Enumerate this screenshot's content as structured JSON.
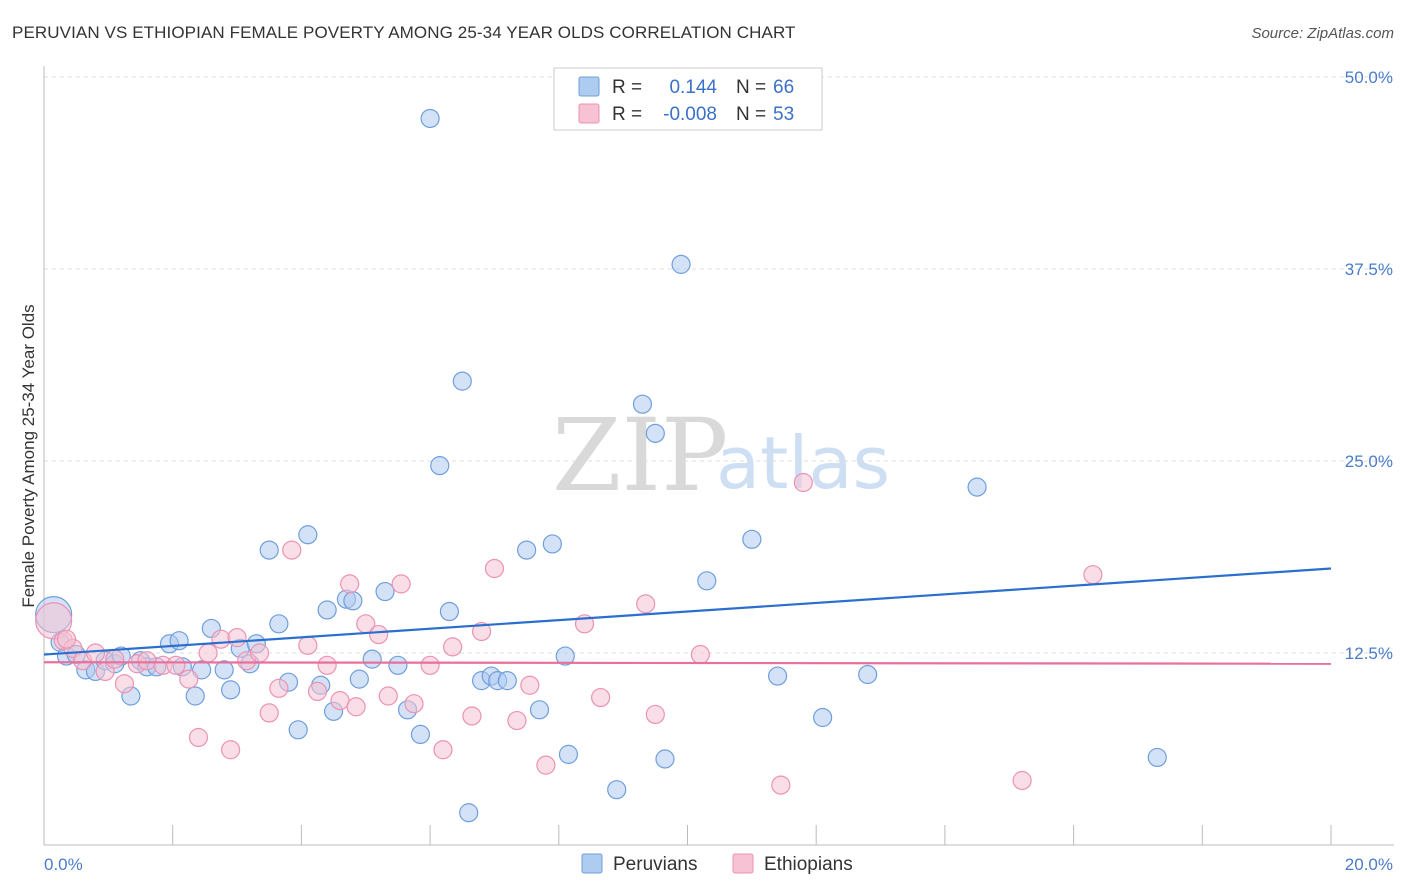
{
  "title": "PERUVIAN VS ETHIOPIAN FEMALE POVERTY AMONG 25-34 YEAR OLDS CORRELATION CHART",
  "source": "Source: ZipAtlas.com",
  "watermark": {
    "zip": "ZIP",
    "atlas": "atlas"
  },
  "legend": {
    "rows": [
      {
        "r_label": "R =",
        "r_value": "0.144",
        "n_label": "N =",
        "n_value": "66"
      },
      {
        "r_label": "R =",
        "r_value": "-0.008",
        "n_label": "N =",
        "n_value": "53"
      }
    ]
  },
  "bottom_legend": {
    "peruvians": "Peruvians",
    "ethiopians": "Ethiopians"
  },
  "colors": {
    "peruvians_fill": "#aecbf0",
    "peruvians_stroke": "#6f9fdc",
    "peruvians_line": "#2a6fcd",
    "ethiopians_fill": "#f6c2d4",
    "ethiopians_stroke": "#ec92b2",
    "ethiopians_line": "#e8709c",
    "grid": "#dddddd",
    "tick_text": "#4a7cc9"
  },
  "chart_data": {
    "type": "scatter",
    "title": "PERUVIAN VS ETHIOPIAN FEMALE POVERTY AMONG 25-34 YEAR OLDS CORRELATION CHART",
    "xlabel": "",
    "ylabel": "Female Poverty Among 25-34 Year Olds",
    "xlim": [
      0,
      20
    ],
    "ylim": [
      0,
      50
    ],
    "x_tick_labels": [
      "0.0%",
      "20.0%"
    ],
    "y_ticks": [
      12.5,
      25.0,
      37.5,
      50.0
    ],
    "y_tick_labels": [
      "12.5%",
      "25.0%",
      "37.5%",
      "50.0%"
    ],
    "grid": true,
    "legend_position": "top-center",
    "series": [
      {
        "name": "Peruvians",
        "r": 0.144,
        "n": 66,
        "trend": {
          "x": [
            0,
            20
          ],
          "y": [
            12.4,
            18.0
          ]
        },
        "points": [
          {
            "x": 0.15,
            "y": 15.0,
            "big": true
          },
          {
            "x": 0.25,
            "y": 13.2
          },
          {
            "x": 0.35,
            "y": 12.3
          },
          {
            "x": 0.5,
            "y": 12.4
          },
          {
            "x": 0.65,
            "y": 11.4
          },
          {
            "x": 0.8,
            "y": 11.3
          },
          {
            "x": 0.95,
            "y": 12.0
          },
          {
            "x": 1.1,
            "y": 11.8
          },
          {
            "x": 1.2,
            "y": 12.3
          },
          {
            "x": 1.35,
            "y": 9.7
          },
          {
            "x": 1.5,
            "y": 12.0
          },
          {
            "x": 1.6,
            "y": 11.6
          },
          {
            "x": 1.75,
            "y": 11.6
          },
          {
            "x": 1.95,
            "y": 13.1
          },
          {
            "x": 2.1,
            "y": 13.3
          },
          {
            "x": 2.15,
            "y": 11.6
          },
          {
            "x": 2.35,
            "y": 9.7
          },
          {
            "x": 2.45,
            "y": 11.4
          },
          {
            "x": 2.6,
            "y": 14.1
          },
          {
            "x": 2.8,
            "y": 11.4
          },
          {
            "x": 2.9,
            "y": 10.1
          },
          {
            "x": 3.05,
            "y": 12.8
          },
          {
            "x": 3.2,
            "y": 11.8
          },
          {
            "x": 3.3,
            "y": 13.1
          },
          {
            "x": 3.5,
            "y": 19.2
          },
          {
            "x": 3.65,
            "y": 14.4
          },
          {
            "x": 3.8,
            "y": 10.6
          },
          {
            "x": 3.95,
            "y": 7.5
          },
          {
            "x": 4.1,
            "y": 20.2
          },
          {
            "x": 4.3,
            "y": 10.4
          },
          {
            "x": 4.4,
            "y": 15.3
          },
          {
            "x": 4.5,
            "y": 8.7
          },
          {
            "x": 4.7,
            "y": 16.0
          },
          {
            "x": 4.8,
            "y": 15.9
          },
          {
            "x": 4.9,
            "y": 10.8
          },
          {
            "x": 5.1,
            "y": 12.1
          },
          {
            "x": 5.3,
            "y": 16.5
          },
          {
            "x": 5.5,
            "y": 11.7
          },
          {
            "x": 5.65,
            "y": 8.8
          },
          {
            "x": 5.85,
            "y": 7.2
          },
          {
            "x": 6.0,
            "y": 47.3
          },
          {
            "x": 6.15,
            "y": 24.7
          },
          {
            "x": 6.3,
            "y": 15.2
          },
          {
            "x": 6.5,
            "y": 30.2
          },
          {
            "x": 6.8,
            "y": 10.7
          },
          {
            "x": 6.95,
            "y": 11.0
          },
          {
            "x": 7.05,
            "y": 10.7
          },
          {
            "x": 7.2,
            "y": 10.7
          },
          {
            "x": 7.5,
            "y": 19.2
          },
          {
            "x": 7.7,
            "y": 8.8
          },
          {
            "x": 7.9,
            "y": 19.6
          },
          {
            "x": 8.1,
            "y": 12.3
          },
          {
            "x": 8.15,
            "y": 5.9
          },
          {
            "x": 8.9,
            "y": 3.6
          },
          {
            "x": 9.3,
            "y": 28.7
          },
          {
            "x": 9.5,
            "y": 26.8
          },
          {
            "x": 9.65,
            "y": 5.6
          },
          {
            "x": 9.9,
            "y": 37.8
          },
          {
            "x": 10.3,
            "y": 17.2
          },
          {
            "x": 11.0,
            "y": 19.9
          },
          {
            "x": 11.4,
            "y": 11.0
          },
          {
            "x": 12.1,
            "y": 8.3
          },
          {
            "x": 12.8,
            "y": 11.1
          },
          {
            "x": 14.5,
            "y": 23.3
          },
          {
            "x": 17.3,
            "y": 5.7
          },
          {
            "x": 6.6,
            "y": 2.1
          }
        ]
      },
      {
        "name": "Ethiopians",
        "r": -0.008,
        "n": 53,
        "trend": {
          "x": [
            0,
            20
          ],
          "y": [
            11.9,
            11.8
          ]
        },
        "points": [
          {
            "x": 0.15,
            "y": 14.6,
            "big": true
          },
          {
            "x": 0.3,
            "y": 13.3
          },
          {
            "x": 0.45,
            "y": 12.8
          },
          {
            "x": 0.6,
            "y": 12.0
          },
          {
            "x": 0.8,
            "y": 12.5
          },
          {
            "x": 0.95,
            "y": 11.3
          },
          {
            "x": 1.1,
            "y": 12.1
          },
          {
            "x": 1.25,
            "y": 10.5
          },
          {
            "x": 1.45,
            "y": 11.8
          },
          {
            "x": 1.6,
            "y": 12.0
          },
          {
            "x": 1.85,
            "y": 11.7
          },
          {
            "x": 2.05,
            "y": 11.7
          },
          {
            "x": 2.25,
            "y": 10.8
          },
          {
            "x": 2.4,
            "y": 7.0
          },
          {
            "x": 2.55,
            "y": 12.5
          },
          {
            "x": 2.75,
            "y": 13.4
          },
          {
            "x": 2.9,
            "y": 6.2
          },
          {
            "x": 3.0,
            "y": 13.5
          },
          {
            "x": 3.15,
            "y": 12.0
          },
          {
            "x": 3.35,
            "y": 12.5
          },
          {
            "x": 3.5,
            "y": 8.6
          },
          {
            "x": 3.65,
            "y": 10.2
          },
          {
            "x": 3.85,
            "y": 19.2
          },
          {
            "x": 4.1,
            "y": 13.0
          },
          {
            "x": 4.25,
            "y": 10.0
          },
          {
            "x": 4.4,
            "y": 11.7
          },
          {
            "x": 4.6,
            "y": 9.4
          },
          {
            "x": 4.75,
            "y": 17.0
          },
          {
            "x": 4.85,
            "y": 9.0
          },
          {
            "x": 5.0,
            "y": 14.4
          },
          {
            "x": 5.2,
            "y": 13.7
          },
          {
            "x": 5.35,
            "y": 9.7
          },
          {
            "x": 5.55,
            "y": 17.0
          },
          {
            "x": 5.75,
            "y": 9.2
          },
          {
            "x": 6.0,
            "y": 11.7
          },
          {
            "x": 6.2,
            "y": 6.2
          },
          {
            "x": 6.35,
            "y": 12.9
          },
          {
            "x": 6.65,
            "y": 8.4
          },
          {
            "x": 6.8,
            "y": 13.9
          },
          {
            "x": 7.0,
            "y": 18.0
          },
          {
            "x": 7.35,
            "y": 8.1
          },
          {
            "x": 7.55,
            "y": 10.4
          },
          {
            "x": 7.8,
            "y": 5.2
          },
          {
            "x": 8.4,
            "y": 14.4
          },
          {
            "x": 8.65,
            "y": 9.6
          },
          {
            "x": 9.35,
            "y": 15.7
          },
          {
            "x": 9.5,
            "y": 8.5
          },
          {
            "x": 10.2,
            "y": 12.4
          },
          {
            "x": 11.45,
            "y": 3.9
          },
          {
            "x": 11.8,
            "y": 23.6
          },
          {
            "x": 15.2,
            "y": 4.2
          },
          {
            "x": 16.3,
            "y": 17.6
          },
          {
            "x": 0.35,
            "y": 13.4
          }
        ]
      }
    ]
  }
}
